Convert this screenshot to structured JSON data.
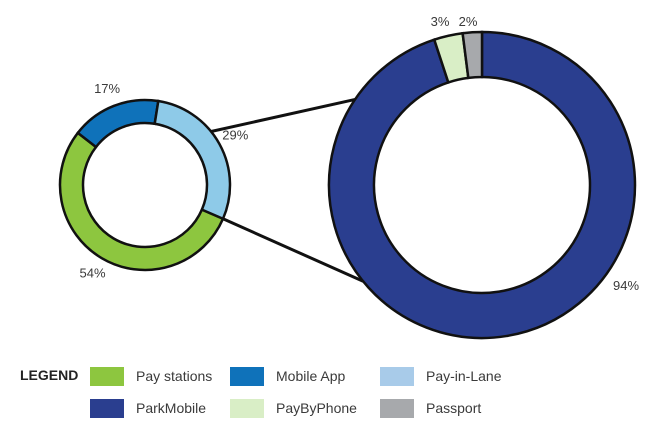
{
  "chart_data": [
    {
      "type": "pie",
      "categories": [
        "Pay stations",
        "Mobile App",
        "Pay-in-Lane"
      ],
      "values": [
        54,
        17,
        29
      ],
      "labels": [
        "54%",
        "17%",
        "29%"
      ],
      "colors": [
        "#8dc63f",
        "#0f72ba",
        "#8ecae8"
      ]
    },
    {
      "type": "pie",
      "categories": [
        "ParkMobile",
        "PayByPhone",
        "Passport"
      ],
      "values": [
        94,
        3,
        2
      ],
      "labels": [
        "94%",
        "3%",
        "2%"
      ],
      "colors": [
        "#2a3e8f",
        "#d9eec6",
        "#a7a9ac"
      ]
    }
  ],
  "legend": {
    "title": "LEGEND",
    "items": [
      {
        "label": "Pay stations",
        "color": "#8dc63f"
      },
      {
        "label": "Mobile App",
        "color": "#0f72ba"
      },
      {
        "label": "Pay-in-Lane",
        "color": "#a8cbe9"
      },
      {
        "label": "ParkMobile",
        "color": "#2a3e8f"
      },
      {
        "label": "PayByPhone",
        "color": "#d9eec6"
      },
      {
        "label": "Passport",
        "color": "#a7a9ac"
      }
    ]
  }
}
